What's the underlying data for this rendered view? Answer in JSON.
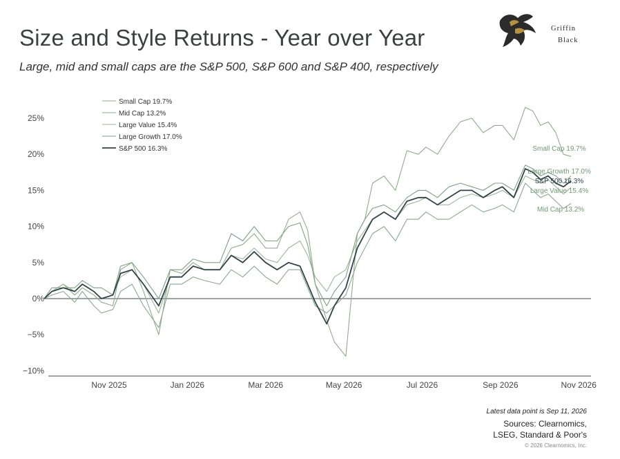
{
  "header": {
    "title": "Size and Style Returns - Year over Year",
    "subtitle": "Large, mid and small caps are the S&P 500, S&P 600 and S&P 400, respectively"
  },
  "logo": {
    "line1": "Griffin",
    "line2": "Black"
  },
  "footer": {
    "latest": "Latest data point is Sep 11, 2026",
    "sources_line1": "Sources: Clearnomics,",
    "sources_line2": "LSEG, Standard & Poor's",
    "copyright": "© 2026 Clearnomics, Inc."
  },
  "chart_data": {
    "type": "line",
    "x_ticks": [
      "Nov 2025",
      "Jan 2026",
      "Mar 2026",
      "May 2026",
      "Jul 2026",
      "Sep 2026",
      "Nov 2026"
    ],
    "y_ticks": [
      "25%",
      "20%",
      "15%",
      "10%",
      "5%",
      "0%",
      "−5%",
      "−10%"
    ],
    "y_tick_values": [
      25,
      20,
      15,
      10,
      5,
      0,
      -5,
      -10
    ],
    "ylim": [
      -10,
      27
    ],
    "x_range_months": [
      0,
      15
    ],
    "grid": false,
    "zero_line": true,
    "legend_position": "top-left",
    "colors": {
      "small_cap": "#8fad8a",
      "mid_cap": "#8aa88f",
      "large_value": "#9ab79a",
      "large_growth": "#7ea185",
      "sp500": "#2f4347",
      "zero": "#3a4a44",
      "end_label": "#6f9a70"
    },
    "series": [
      {
        "name": "Small Cap 19.7%",
        "end_label": "Small Cap 19.7%",
        "x": [
          0,
          0.2,
          0.5,
          0.8,
          1.0,
          1.3,
          1.5,
          1.8,
          2.0,
          2.3,
          2.6,
          3.0,
          3.3,
          3.6,
          3.9,
          4.2,
          4.6,
          4.9,
          5.2,
          5.5,
          5.8,
          6.1,
          6.4,
          6.7,
          6.9,
          7.1,
          7.4,
          7.6,
          7.9,
          8.2,
          8.4,
          8.6,
          8.9,
          9.2,
          9.5,
          9.8,
          10.0,
          10.3,
          10.6,
          10.9,
          11.2,
          11.5,
          11.8,
          12.0,
          12.3,
          12.6,
          12.8,
          13.0,
          13.2,
          13.4,
          13.6,
          13.8
        ],
        "values": [
          0,
          1,
          2,
          0.5,
          1.5,
          0.5,
          -0.5,
          -1,
          4,
          5,
          1,
          -5,
          4,
          3.5,
          5,
          4,
          4,
          7,
          7.5,
          9,
          7,
          7,
          11,
          12,
          9.5,
          2,
          -3,
          -6,
          -8,
          9,
          11,
          16,
          17,
          15,
          20.5,
          20,
          21,
          20,
          22.5,
          24.5,
          25,
          23,
          24,
          24,
          22,
          26.5,
          26,
          24,
          24.5,
          23,
          20,
          19.7
        ]
      },
      {
        "name": "Mid Cap 13.2%",
        "end_label": "Mid Cap 13.2%",
        "x": [
          0,
          0.2,
          0.5,
          0.8,
          1.0,
          1.3,
          1.5,
          1.8,
          2.0,
          2.3,
          2.6,
          3.0,
          3.3,
          3.6,
          3.9,
          4.2,
          4.6,
          4.9,
          5.2,
          5.5,
          5.8,
          6.1,
          6.4,
          6.7,
          6.9,
          7.1,
          7.4,
          7.6,
          7.9,
          8.2,
          8.4,
          8.6,
          8.9,
          9.2,
          9.5,
          9.8,
          10.0,
          10.3,
          10.6,
          10.9,
          11.2,
          11.5,
          11.8,
          12.0,
          12.3,
          12.6,
          12.8,
          13.0,
          13.2,
          13.4,
          13.6,
          13.8
        ],
        "values": [
          0,
          0.5,
          1,
          -0.5,
          1,
          -1,
          -2,
          -1.5,
          1,
          2,
          -1,
          -4,
          2,
          2,
          3,
          2.5,
          2,
          4,
          3,
          4.5,
          3,
          2,
          4,
          4,
          1.5,
          -1,
          -2,
          -1,
          0.5,
          5,
          7,
          9,
          10,
          8,
          11,
          11,
          12,
          11,
          11,
          12,
          13,
          12,
          12.5,
          13,
          12,
          16,
          15,
          14,
          14.5,
          13.5,
          12.5,
          13.2
        ]
      },
      {
        "name": "Large Value 15.4%",
        "end_label": "Large Value 15.4%",
        "x": [
          0,
          0.2,
          0.5,
          0.8,
          1.0,
          1.3,
          1.5,
          1.8,
          2.0,
          2.3,
          2.6,
          3.0,
          3.3,
          3.6,
          3.9,
          4.2,
          4.6,
          4.9,
          5.2,
          5.5,
          5.8,
          6.1,
          6.4,
          6.7,
          6.9,
          7.1,
          7.4,
          7.6,
          7.9,
          8.2,
          8.4,
          8.6,
          8.9,
          9.2,
          9.5,
          9.8,
          10.0,
          10.3,
          10.6,
          10.9,
          11.2,
          11.5,
          11.8,
          12.0,
          12.3,
          12.6,
          12.8,
          13.0,
          13.2,
          13.4,
          13.6,
          13.8
        ],
        "values": [
          0,
          1,
          2,
          1,
          2,
          1,
          0,
          0.5,
          3,
          4,
          2,
          -2,
          3,
          3,
          4.5,
          4,
          4,
          6,
          5.5,
          7,
          5.5,
          5,
          7,
          8,
          6,
          3,
          1,
          3,
          4,
          8,
          9.5,
          11,
          12,
          11,
          13,
          13.5,
          14,
          13,
          13,
          14,
          14.5,
          14,
          14.5,
          15,
          14,
          17,
          16.5,
          16,
          16.5,
          15.5,
          14.5,
          15.4
        ]
      },
      {
        "name": "Large Growth 17.0%",
        "end_label": "Large Growth 17.0%",
        "x": [
          0,
          0.2,
          0.5,
          0.8,
          1.0,
          1.3,
          1.5,
          1.8,
          2.0,
          2.3,
          2.6,
          3.0,
          3.3,
          3.6,
          3.9,
          4.2,
          4.6,
          4.9,
          5.2,
          5.5,
          5.8,
          6.1,
          6.4,
          6.7,
          6.9,
          7.1,
          7.4,
          7.6,
          7.9,
          8.2,
          8.4,
          8.6,
          8.9,
          9.2,
          9.5,
          9.8,
          10.0,
          10.3,
          10.6,
          10.9,
          11.2,
          11.5,
          11.8,
          12.0,
          12.3,
          12.6,
          12.8,
          13.0,
          13.2,
          13.4,
          13.6,
          13.8
        ],
        "values": [
          0,
          1.5,
          1.5,
          1.5,
          2.5,
          1.5,
          1.5,
          0.5,
          4.5,
          5,
          3,
          0,
          4,
          4,
          5.5,
          5,
          5,
          9,
          8,
          10,
          8,
          8,
          10,
          10.5,
          7.5,
          2,
          -1,
          1,
          3,
          9,
          11,
          12.5,
          13,
          12,
          14,
          15,
          15,
          14,
          15.5,
          16,
          15.5,
          15,
          16,
          16,
          15,
          18.5,
          18,
          17,
          17.5,
          17,
          16,
          17.0
        ]
      },
      {
        "name": "S&P 500 16.3%",
        "end_label": "S&P 500 16.3%",
        "x": [
          0,
          0.2,
          0.5,
          0.8,
          1.0,
          1.3,
          1.5,
          1.8,
          2.0,
          2.3,
          2.6,
          3.0,
          3.3,
          3.6,
          3.9,
          4.2,
          4.6,
          4.9,
          5.2,
          5.5,
          5.8,
          6.1,
          6.4,
          6.7,
          6.9,
          7.1,
          7.4,
          7.6,
          7.9,
          8.2,
          8.4,
          8.6,
          8.9,
          9.2,
          9.5,
          9.8,
          10.0,
          10.3,
          10.6,
          10.9,
          11.2,
          11.5,
          11.8,
          12.0,
          12.3,
          12.6,
          12.8,
          13.0,
          13.2,
          13.4,
          13.6,
          13.8
        ],
        "values": [
          0,
          1,
          1.5,
          1,
          2,
          1,
          0,
          0.5,
          3.5,
          4,
          2,
          -1,
          3,
          3,
          4.5,
          4,
          4,
          6,
          5,
          6.5,
          5,
          4,
          5,
          4.5,
          2,
          -0.5,
          -3.5,
          -1,
          1.5,
          7,
          9,
          11,
          12,
          11,
          13.5,
          14,
          14,
          13,
          14,
          15,
          15,
          14,
          15,
          15.5,
          14,
          18,
          17.5,
          16.5,
          17,
          16,
          15.5,
          16.3
        ]
      }
    ]
  }
}
